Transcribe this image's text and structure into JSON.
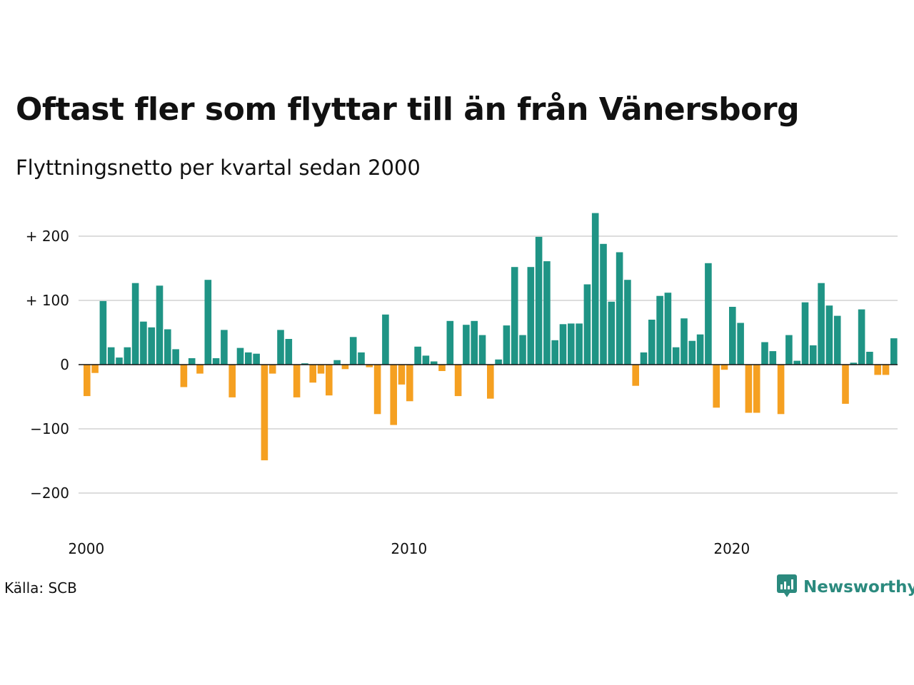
{
  "title": "Oftast fler som flyttar till än från Vänersborg",
  "subtitle": "Flyttningsnetto per kvartal sedan 2000",
  "source": "Källa: SCB",
  "brand": {
    "name": "Newsworthy",
    "icon": "newsworthy-logo-icon",
    "color": "#2b8a7e"
  },
  "colors": {
    "positive": "#1f9485",
    "negative": "#f5a021",
    "grid": "#dddddd",
    "zero": "#111111"
  },
  "chart_data": {
    "type": "bar",
    "x_start": "2000 Q1",
    "x_interval": "quarter",
    "ylim": [
      -240,
      240
    ],
    "grid": true,
    "y_ticks": [
      {
        "value": 200,
        "label": "+ 200"
      },
      {
        "value": 100,
        "label": "+ 100"
      },
      {
        "value": 0,
        "label": "0"
      },
      {
        "value": -100,
        "label": "−100"
      },
      {
        "value": -200,
        "label": "−200"
      }
    ],
    "x_ticks": [
      {
        "year": 2000,
        "label": "2000"
      },
      {
        "year": 2010,
        "label": "2010"
      },
      {
        "year": 2020,
        "label": "2020"
      }
    ],
    "values": [
      -49,
      -13,
      99,
      27,
      11,
      27,
      127,
      67,
      58,
      123,
      55,
      24,
      -35,
      10,
      -14,
      132,
      10,
      54,
      -51,
      26,
      19,
      17,
      -149,
      -14,
      54,
      40,
      -51,
      2,
      -28,
      -14,
      -48,
      7,
      -7,
      43,
      19,
      -4,
      -77,
      78,
      -94,
      -31,
      -57,
      28,
      14,
      5,
      -10,
      68,
      -49,
      62,
      68,
      46,
      -53,
      8,
      61,
      152,
      46,
      152,
      199,
      161,
      38,
      63,
      64,
      64,
      125,
      236,
      188,
      98,
      175,
      132,
      -33,
      19,
      70,
      107,
      112,
      27,
      72,
      37,
      47,
      158,
      -67,
      -8,
      90,
      65,
      -75,
      -75,
      35,
      21,
      -77,
      46,
      6,
      97,
      30,
      127,
      92,
      76,
      -61,
      3,
      86,
      20,
      -16,
      -16,
      41
    ]
  }
}
